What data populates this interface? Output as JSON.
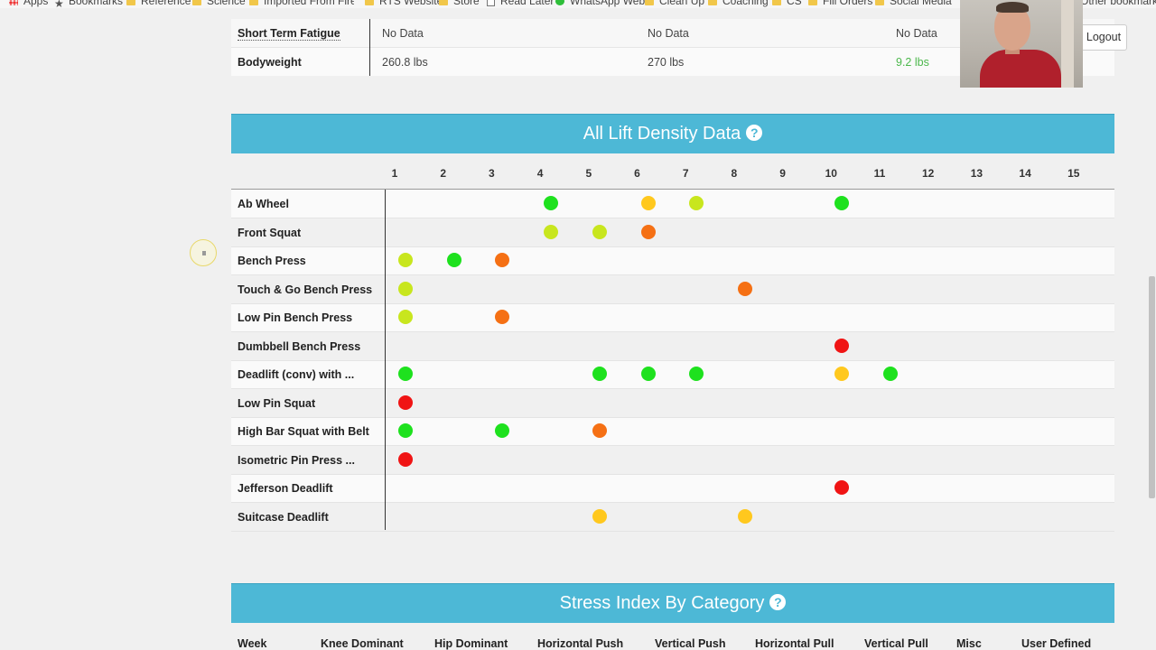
{
  "bookmarks": [
    {
      "label": "Apps",
      "icon": "apps-icon"
    },
    {
      "label": "Bookmarks",
      "icon": "star-icon"
    },
    {
      "label": "Reference",
      "icon": "folder-icon"
    },
    {
      "label": "Science",
      "icon": "folder-icon"
    },
    {
      "label": "Imported From Firefox",
      "icon": "folder-icon"
    },
    {
      "label": "RTS Website",
      "icon": "folder-icon"
    },
    {
      "label": "Store",
      "icon": "folder-icon"
    },
    {
      "label": "Read Later",
      "icon": "page-icon"
    },
    {
      "label": "WhatsApp Web",
      "icon": "whatsapp-icon"
    },
    {
      "label": "Clean Up",
      "icon": "folder-icon"
    },
    {
      "label": "Coaching",
      "icon": "folder-icon"
    },
    {
      "label": "CS",
      "icon": "folder-icon"
    },
    {
      "label": "Fill Orders",
      "icon": "folder-icon"
    },
    {
      "label": "Social Media",
      "icon": "folder-icon"
    },
    {
      "label": "Other bookmarks",
      "icon": "folder-icon"
    }
  ],
  "logout_label": "Logout",
  "summary": {
    "rows": [
      {
        "label": "Short Term Fatigue",
        "values": [
          "No Data",
          "No Data",
          "No Data"
        ]
      },
      {
        "label": "Bodyweight",
        "values": [
          "260.8 lbs",
          "270 lbs",
          "9.2 lbs"
        ]
      }
    ]
  },
  "density": {
    "title": "All Lift Density Data",
    "help_glyph": "?",
    "columns": [
      "1",
      "2",
      "3",
      "4",
      "5",
      "6",
      "7",
      "8",
      "9",
      "10",
      "11",
      "12",
      "13",
      "14",
      "15"
    ],
    "colors": {
      "green": "#1ee11e",
      "lime": "#c8e61e",
      "yellow": "#ffc81e",
      "orange": "#f57014",
      "red": "#f01414"
    },
    "rows": [
      {
        "name": "Ab Wheel",
        "dots": [
          [
            4,
            "green"
          ],
          [
            6,
            "yellow"
          ],
          [
            7,
            "lime"
          ],
          [
            10,
            "green"
          ]
        ]
      },
      {
        "name": "Front Squat",
        "dots": [
          [
            4,
            "lime"
          ],
          [
            5,
            "lime"
          ],
          [
            6,
            "orange"
          ]
        ]
      },
      {
        "name": "Bench Press",
        "dots": [
          [
            1,
            "lime"
          ],
          [
            2,
            "green"
          ],
          [
            3,
            "orange"
          ]
        ]
      },
      {
        "name": "Touch & Go Bench Press",
        "dots": [
          [
            1,
            "lime"
          ],
          [
            8,
            "orange"
          ]
        ]
      },
      {
        "name": "Low Pin Bench Press",
        "dots": [
          [
            1,
            "lime"
          ],
          [
            3,
            "orange"
          ]
        ]
      },
      {
        "name": "Dumbbell Bench Press",
        "dots": [
          [
            10,
            "red"
          ]
        ]
      },
      {
        "name": "Deadlift (conv) with ...",
        "dots": [
          [
            1,
            "green"
          ],
          [
            5,
            "green"
          ],
          [
            6,
            "green"
          ],
          [
            7,
            "green"
          ],
          [
            10,
            "yellow"
          ],
          [
            11,
            "green"
          ]
        ]
      },
      {
        "name": "Low Pin Squat",
        "dots": [
          [
            1,
            "red"
          ]
        ]
      },
      {
        "name": "High Bar Squat with Belt",
        "dots": [
          [
            1,
            "green"
          ],
          [
            3,
            "green"
          ],
          [
            5,
            "orange"
          ]
        ]
      },
      {
        "name": "Isometric Pin Press ...",
        "dots": [
          [
            1,
            "red"
          ]
        ]
      },
      {
        "name": "Jefferson Deadlift",
        "dots": [
          [
            10,
            "red"
          ]
        ]
      },
      {
        "name": "Suitcase Deadlift",
        "dots": [
          [
            5,
            "yellow"
          ],
          [
            8,
            "yellow"
          ]
        ]
      }
    ]
  },
  "stress": {
    "title": "Stress Index By Category",
    "help_glyph": "?",
    "headers": [
      "Week",
      "Knee Dominant",
      "Hip Dominant",
      "Horizontal Push",
      "Vertical Push",
      "Horizontal Pull",
      "Vertical Pull",
      "Misc",
      "User Defined"
    ]
  },
  "accent_color": "#4db8d6"
}
